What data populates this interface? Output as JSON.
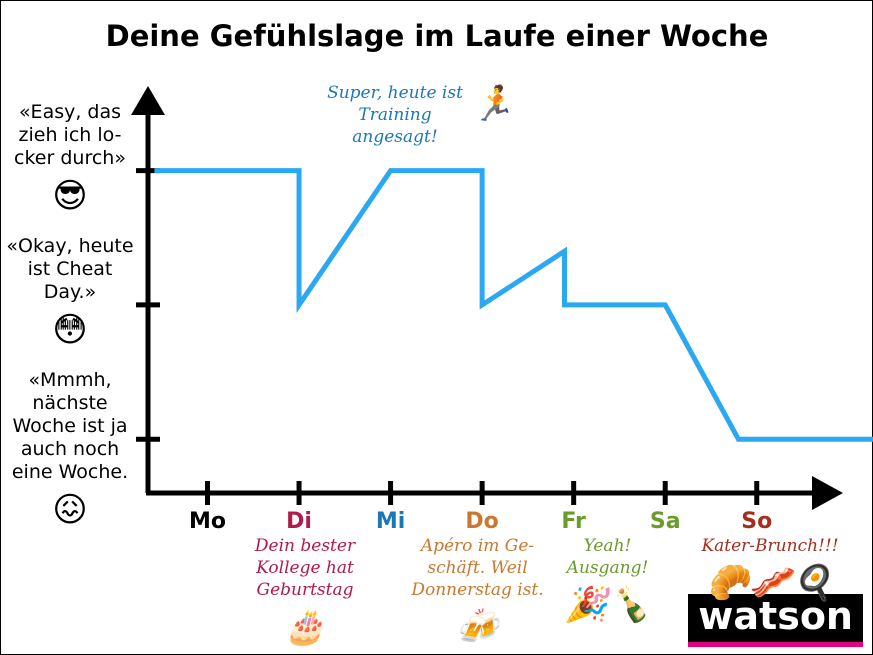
{
  "chart_data": {
    "type": "line",
    "title": "Deine Gefühlslage im Laufe einer Woche",
    "x": [
      -0.58,
      1,
      1,
      2,
      3,
      3,
      3.9,
      3.9,
      5,
      5.8,
      7.27
    ],
    "values": [
      3,
      3,
      2,
      3,
      3,
      2,
      2.4,
      2,
      2,
      1,
      1
    ],
    "color": "#2aa8f2",
    "xlim": [
      -0.65,
      7.27
    ],
    "ylim": [
      0.6,
      3.6
    ],
    "xticks": [
      {
        "value": 0,
        "label": "Mo"
      },
      {
        "value": 1,
        "label": "Di"
      },
      {
        "value": 2,
        "label": "Mi"
      },
      {
        "value": 3,
        "label": "Do"
      },
      {
        "value": 4,
        "label": "Fr"
      },
      {
        "value": 5,
        "label": "Sa"
      },
      {
        "value": 6,
        "label": "So"
      }
    ],
    "xtick_colors": [
      "#000000",
      "#b3194b",
      "#1b78b4",
      "#c8782f",
      "#6b9b2b",
      "#6b9b2b",
      "#a3301f"
    ],
    "yticks": [
      {
        "value": 1,
        "label": "«Mmmh, nächste Woche ist ja auch noch eine Woche."
      },
      {
        "value": 2,
        "label": "«Okay, heute ist Cheat Day.»"
      },
      {
        "value": 3,
        "label": "«Easy, das zieh ich lo-cker durch»"
      }
    ],
    "ytick_icons": [
      "😖",
      "😳",
      "😎"
    ],
    "annotations": [
      {
        "text": "Super, heute ist Training angesagt!",
        "icon": "🏃",
        "color": "#1b78b4"
      },
      {
        "text": "Dein bester Kollege hat Geburtstag",
        "icon": "🎂",
        "color": "#b3194b"
      },
      {
        "text": "Apéro im Ge-schäft. Weil Donnerstag ist.",
        "icon": "🍻",
        "color": "#c8782f"
      },
      {
        "text": "Yeah! Ausgang!",
        "icon": "🎉🍾",
        "color": "#6b9b2b"
      },
      {
        "text": "Kater-Brunch!!!",
        "icon": "🥐🥓🍳",
        "color": "#a3301f"
      }
    ],
    "logo": "watson"
  }
}
